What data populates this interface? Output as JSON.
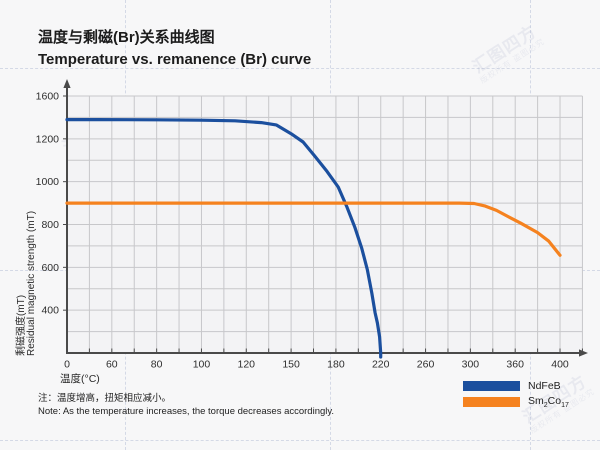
{
  "chart_data": {
    "type": "line",
    "title_zh": "温度与剩磁(Br)关系曲线图",
    "title_en": "Temperature vs. remanence (Br) curve",
    "xlabel": "温度(°C)",
    "ylabel_zh": "剩磁强度(mT)",
    "ylabel_en": "Residual magnetic strength (mT)",
    "x_ticks": [
      0,
      60,
      80,
      100,
      120,
      150,
      180,
      220,
      260,
      300,
      360,
      400
    ],
    "y_ticks_labeled": [
      1600,
      1200,
      1000,
      800,
      600,
      400
    ],
    "origin_label": "0",
    "y_gridline_values": [
      1600,
      1400,
      1200,
      1100,
      1000,
      900,
      800,
      700,
      600,
      500,
      400,
      200,
      0
    ],
    "axis_note": "tick spacing is uniform in pixels but non-uniform in value (decorative axis)",
    "grid": true,
    "xlim": [
      0,
      400
    ],
    "ylim": [
      0,
      1600
    ],
    "legend_position": "bottom-right",
    "series": [
      {
        "name": "NdFeB",
        "color": "#1b4f9e",
        "points": [
          [
            0,
            1380
          ],
          [
            40,
            1380
          ],
          [
            80,
            1378
          ],
          [
            100,
            1374
          ],
          [
            115,
            1368
          ],
          [
            130,
            1352
          ],
          [
            140,
            1330
          ],
          [
            150,
            1248
          ],
          [
            158,
            1185
          ],
          [
            166,
            1118
          ],
          [
            174,
            1048
          ],
          [
            182,
            975
          ],
          [
            190,
            880
          ],
          [
            197,
            785
          ],
          [
            203,
            690
          ],
          [
            208,
            590
          ],
          [
            212,
            480
          ],
          [
            215,
            375
          ],
          [
            217,
            280
          ],
          [
            219,
            150
          ],
          [
            220,
            0
          ]
        ]
      },
      {
        "name": "Sm2Co17",
        "color": "#f5821f",
        "points": [
          [
            0,
            900
          ],
          [
            60,
            900
          ],
          [
            120,
            900
          ],
          [
            180,
            900
          ],
          [
            240,
            900
          ],
          [
            290,
            900
          ],
          [
            305,
            898
          ],
          [
            320,
            886
          ],
          [
            335,
            866
          ],
          [
            350,
            838
          ],
          [
            365,
            806
          ],
          [
            380,
            762
          ],
          [
            390,
            722
          ],
          [
            400,
            656
          ]
        ]
      }
    ]
  },
  "note": {
    "line_zh": "注：温度增高，扭矩相应减小。",
    "line_en": "Note: As the temperature increases, the torque decreases accordingly."
  },
  "watermark": {
    "brand": "汇图四方",
    "notice": "版权所有 盗图必究"
  },
  "colors": {
    "background": "#f7f7f8",
    "plot_background": "#f3f3f5",
    "gridline": "#c7c7ca",
    "axis": "#4a4a4a",
    "tick_text": "#2e2e2e"
  }
}
